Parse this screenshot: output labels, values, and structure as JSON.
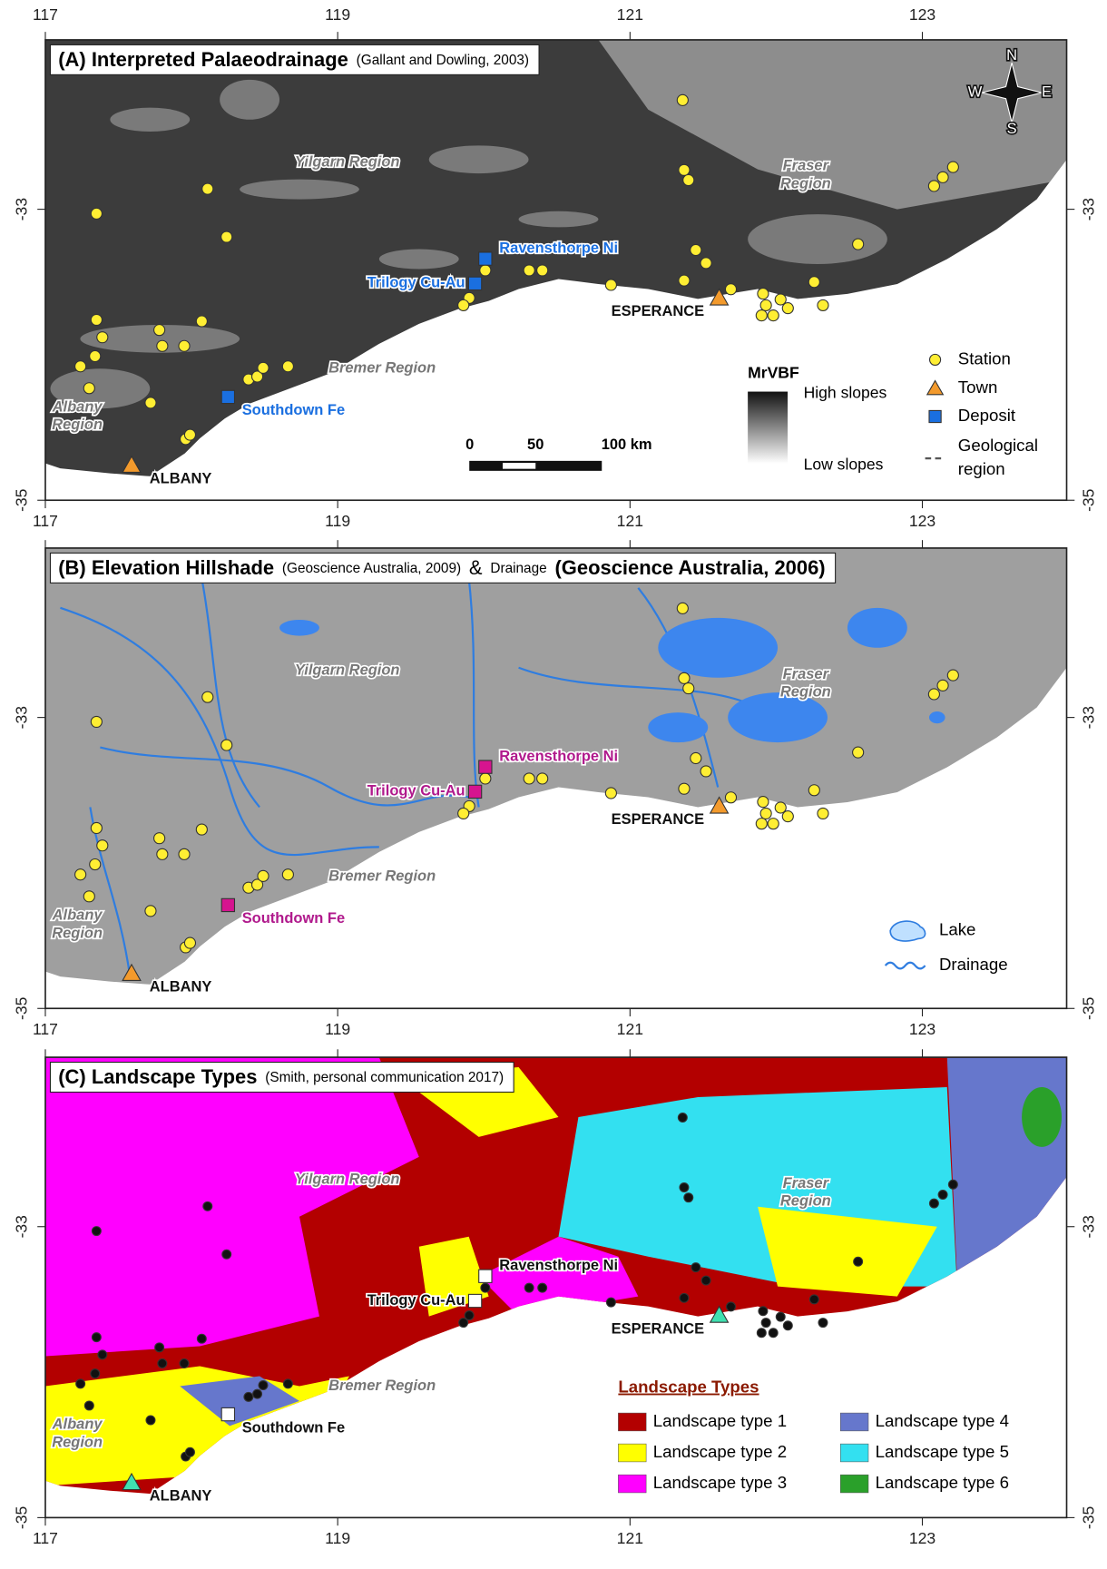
{
  "map": {
    "xticks": [
      117,
      119,
      121,
      123
    ],
    "yticks": [
      -33,
      -35
    ],
    "regions": [
      [
        "Yilgarn Region"
      ],
      [
        "Fraser",
        "Region"
      ],
      [
        "Bremer Region"
      ],
      [
        "Albany",
        "Region"
      ]
    ],
    "towns": [
      {
        "label": "ESPERANCE",
        "lon": 121.61,
        "lat": -33.61
      },
      {
        "label": "ALBANY",
        "lon": 117.59,
        "lat": -34.76
      }
    ],
    "deposits": [
      {
        "label": "Ravensthorpe Ni",
        "lon": 120.01,
        "lat": -33.34
      },
      {
        "label": "Trilogy Cu-Au",
        "lon": 119.94,
        "lat": -33.51
      },
      {
        "label": "Southdown Fe",
        "lon": 118.25,
        "lat": -34.29
      }
    ],
    "stations": [
      [
        121.36,
        -32.25
      ],
      [
        121.37,
        -32.73
      ],
      [
        121.4,
        -32.8
      ],
      [
        118.11,
        -32.86
      ],
      [
        117.35,
        -33.03
      ],
      [
        118.24,
        -33.19
      ],
      [
        121.45,
        -33.28
      ],
      [
        121.52,
        -33.37
      ],
      [
        120.01,
        -33.42
      ],
      [
        120.31,
        -33.42
      ],
      [
        120.4,
        -33.42
      ],
      [
        120.87,
        -33.52
      ],
      [
        121.37,
        -33.49
      ],
      [
        119.9,
        -33.61
      ],
      [
        119.86,
        -33.66
      ],
      [
        121.69,
        -33.55
      ],
      [
        121.91,
        -33.58
      ],
      [
        122.03,
        -33.62
      ],
      [
        121.93,
        -33.66
      ],
      [
        122.08,
        -33.68
      ],
      [
        121.98,
        -33.73
      ],
      [
        121.9,
        -33.73
      ],
      [
        122.26,
        -33.5
      ],
      [
        122.32,
        -33.66
      ],
      [
        122.56,
        -33.24
      ],
      [
        123.21,
        -32.71
      ],
      [
        123.14,
        -32.78
      ],
      [
        123.08,
        -32.84
      ],
      [
        117.35,
        -33.76
      ],
      [
        117.39,
        -33.88
      ],
      [
        117.78,
        -33.83
      ],
      [
        117.8,
        -33.94
      ],
      [
        117.95,
        -33.94
      ],
      [
        118.07,
        -33.77
      ],
      [
        117.34,
        -34.01
      ],
      [
        117.24,
        -34.08
      ],
      [
        117.3,
        -34.23
      ],
      [
        117.72,
        -34.33
      ],
      [
        118.39,
        -34.17
      ],
      [
        118.45,
        -34.15
      ],
      [
        118.49,
        -34.09
      ],
      [
        118.66,
        -34.08
      ],
      [
        117.96,
        -34.58
      ],
      [
        117.99,
        -34.55
      ]
    ]
  },
  "panels": [
    {
      "title_parts": [
        "(A) Interpreted Palaeodrainage",
        "(Gallant and Dowling, 2003)"
      ],
      "station_color": "#ffee33",
      "town_color": "#f39a2c",
      "deposit_color": "#1a6fe0",
      "deposit_label_color": "#1a6fe0",
      "compass": [
        "N",
        "E",
        "S",
        "W"
      ],
      "scale_bar": [
        0,
        50,
        {
          "value": 100,
          "label": "100 km"
        }
      ],
      "colorbar": {
        "title": "MrVBF",
        "high": "High slopes",
        "low": "Low slopes"
      },
      "legend": [
        "Station",
        "Town",
        "Deposit",
        [
          "Geological",
          "region"
        ]
      ]
    },
    {
      "title_parts": [
        "(B) Elevation Hillshade",
        "(Geoscience Australia, 2009)",
        "&",
        "Drainage",
        "(Geoscience Australia, 2006)"
      ],
      "station_color": "#ffee33",
      "town_color": "#f39a2c",
      "deposit_color": "#d6148f",
      "deposit_label_color": "#b0198c",
      "legend": [
        "Lake",
        "Drainage"
      ]
    },
    {
      "title_parts": [
        "(C) Landscape Types",
        "(Smith, personal communication 2017)"
      ],
      "station_color": "#111111",
      "town_color": "#3fe0b0",
      "deposit_color": "#ffffff",
      "deposit_label_color": "#111111",
      "legend_title": "Landscape Types",
      "legend": [
        {
          "name": "Landscape type 1",
          "color": "#b30000"
        },
        {
          "name": "Landscape type 2",
          "color": "#ffff00"
        },
        {
          "name": "Landscape type 3",
          "color": "#ff00ff"
        },
        {
          "name": "Landscape type 4",
          "color": "#6677cc"
        },
        {
          "name": "Landscape type 5",
          "color": "#33e0f0"
        },
        {
          "name": "Landscape type 6",
          "color": "#2aa02a"
        }
      ]
    }
  ]
}
